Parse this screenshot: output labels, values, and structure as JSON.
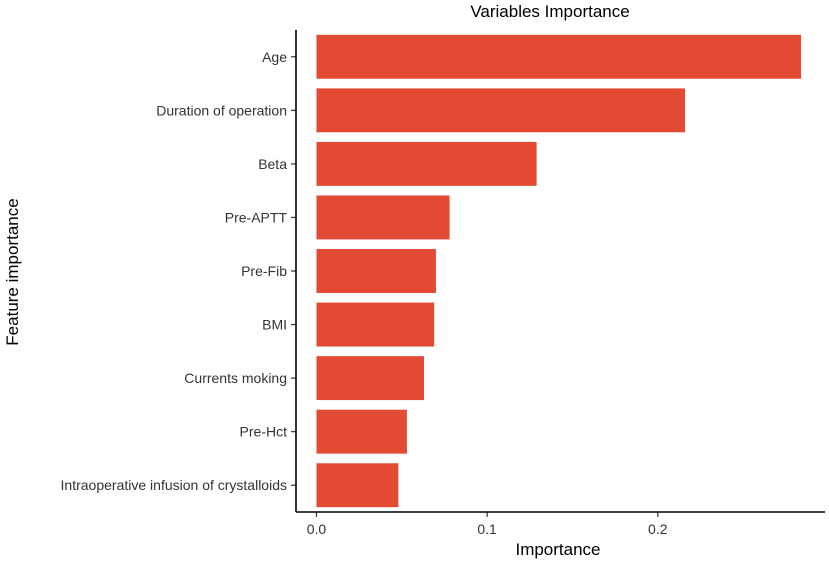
{
  "chart_data": {
    "type": "bar",
    "orientation": "horizontal",
    "title": "Variables Importance",
    "xlabel": "Importance",
    "ylabel": "Feature importance",
    "categories": [
      "Age",
      "Duration of operation",
      "Beta",
      "Pre-APTT",
      "Pre-Fib",
      "BMI",
      "Currents moking",
      "Pre-Hct",
      "Intraoperative infusion of crystalloids"
    ],
    "values": [
      0.284,
      0.216,
      0.129,
      0.078,
      0.07,
      0.069,
      0.063,
      0.053,
      0.048
    ],
    "x_ticks": [
      0.0,
      0.1,
      0.2
    ],
    "x_tick_labels": [
      "0.0",
      "0.1",
      "0.2"
    ],
    "xlim": [
      -0.012,
      0.298
    ],
    "bar_color": "#E34A33",
    "grid": false,
    "legend": "none"
  }
}
